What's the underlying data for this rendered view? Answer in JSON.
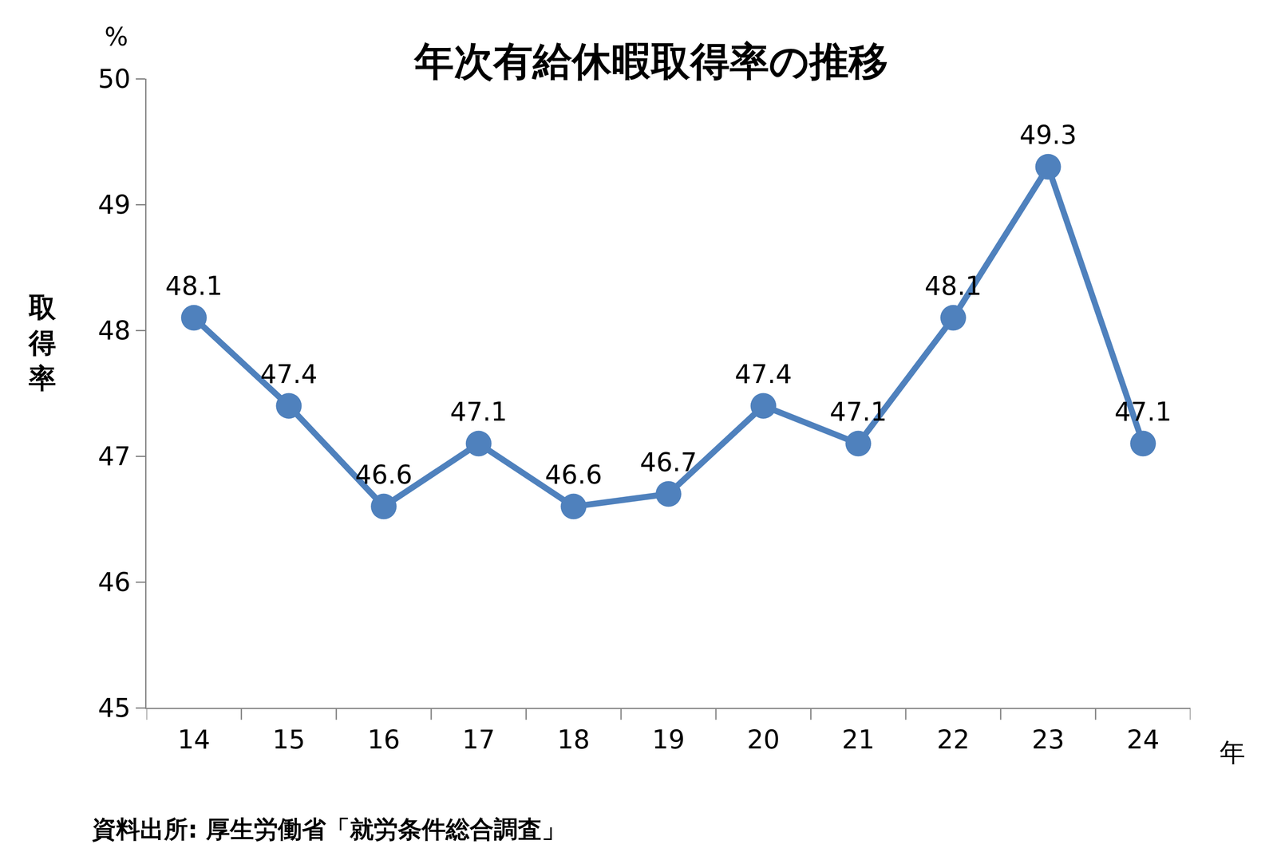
{
  "chart_data": {
    "type": "line",
    "title": "年次有給休暇取得率の推移",
    "categories": [
      "14",
      "15",
      "16",
      "17",
      "18",
      "19",
      "20",
      "21",
      "22",
      "23",
      "24"
    ],
    "values": [
      48.1,
      47.4,
      46.6,
      47.1,
      46.6,
      46.7,
      47.4,
      47.1,
      48.1,
      49.3,
      47.1
    ],
    "color": "#4f81bd",
    "marker": "circle",
    "data_labels": true,
    "grid": false,
    "ylim": [
      45,
      50
    ],
    "yticks": [
      45,
      46,
      47,
      48,
      49,
      50
    ],
    "ylabel": "取得率",
    "unit": "%",
    "xlabel": "年",
    "source": "資料出所: 厚生労働省「就労条件総合調査」"
  }
}
